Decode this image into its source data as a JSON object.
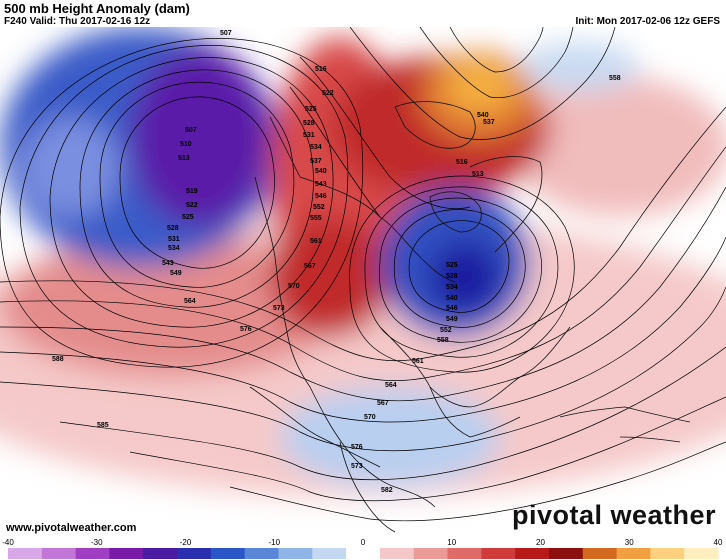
{
  "header": {
    "title": "500 mb Height Anomaly (dam)",
    "valid": "F240 Valid: Thu 2017-02-16 12z",
    "init": "Init: Mon 2017-02-06 12z GEFS"
  },
  "footer": {
    "website": "www.pivotalweather.com",
    "logo": "pivotal weather"
  },
  "contour_labels": [
    "507",
    "510",
    "513",
    "516",
    "519",
    "522",
    "525",
    "528",
    "531",
    "534",
    "537",
    "540",
    "543",
    "546",
    "549",
    "552",
    "555",
    "558",
    "561",
    "564",
    "567",
    "570",
    "573",
    "576",
    "579",
    "582",
    "585",
    "588"
  ],
  "colorbar": {
    "ticks": [
      "-40",
      "-30",
      "-20",
      "-10",
      "0",
      "10",
      "20",
      "30",
      "40"
    ],
    "colors": [
      "#d9a8e8",
      "#c277d8",
      "#a13fc4",
      "#7a1aa8",
      "#4a1aa0",
      "#2a2fb0",
      "#2a56c8",
      "#5a86d8",
      "#8fb4e6",
      "#c4d8f2",
      "#ffffff",
      "#f4c8c8",
      "#eb9a98",
      "#e06a68",
      "#cf3a3a",
      "#b81a1a",
      "#8c1010",
      "#d2691e",
      "#f0a040",
      "#ffd080",
      "#ffeec0"
    ]
  }
}
